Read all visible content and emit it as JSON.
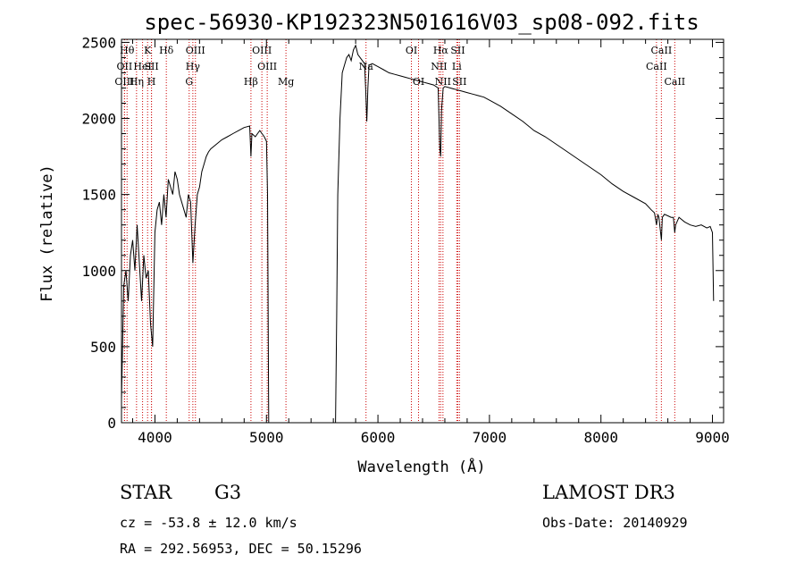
{
  "chart_data": {
    "type": "line",
    "title": "spec-56930-KP192323N501616V03_sp08-092.fits",
    "xlabel": "Wavelength (Å)",
    "ylabel": "Flux (relative)",
    "xlim": [
      3700,
      9100
    ],
    "ylim": [
      0,
      2520
    ],
    "x_ticks": [
      4000,
      5000,
      6000,
      7000,
      8000,
      9000
    ],
    "y_ticks": [
      0,
      500,
      1000,
      1500,
      2000,
      2500
    ],
    "grid": false,
    "series": [
      {
        "name": "spectrum",
        "x": [
          3700,
          3720,
          3740,
          3760,
          3780,
          3800,
          3820,
          3840,
          3860,
          3880,
          3900,
          3920,
          3940,
          3960,
          3980,
          4000,
          4020,
          4040,
          4060,
          4080,
          4100,
          4120,
          4140,
          4160,
          4180,
          4200,
          4220,
          4240,
          4260,
          4280,
          4300,
          4320,
          4340,
          4360,
          4380,
          4400,
          4420,
          4440,
          4460,
          4480,
          4500,
          4550,
          4600,
          4650,
          4700,
          4750,
          4800,
          4850,
          4861,
          4870,
          4900,
          4920,
          4940,
          4960,
          4980,
          5000,
          5010,
          5020,
          5600,
          5620,
          5630,
          5640,
          5660,
          5680,
          5700,
          5720,
          5740,
          5760,
          5780,
          5800,
          5820,
          5840,
          5860,
          5880,
          5890,
          5900,
          5910,
          5920,
          5950,
          6000,
          6050,
          6100,
          6150,
          6200,
          6250,
          6300,
          6350,
          6400,
          6450,
          6500,
          6540,
          6555,
          6563,
          6570,
          6585,
          6600,
          6650,
          6700,
          6750,
          6800,
          6850,
          6900,
          6950,
          7000,
          7100,
          7200,
          7300,
          7400,
          7500,
          7600,
          7700,
          7800,
          7900,
          8000,
          8100,
          8200,
          8300,
          8400,
          8450,
          8480,
          8498,
          8510,
          8520,
          8542,
          8550,
          8570,
          8600,
          8630,
          8650,
          8662,
          8670,
          8700,
          8750,
          8800,
          8850,
          8900,
          8950,
          8980,
          9000,
          9010
        ],
        "y": [
          150,
          900,
          1000,
          800,
          1100,
          1200,
          1000,
          1300,
          1050,
          800,
          1100,
          950,
          1000,
          650,
          500,
          1250,
          1400,
          1450,
          1300,
          1500,
          1350,
          1600,
          1550,
          1500,
          1650,
          1600,
          1500,
          1450,
          1400,
          1350,
          1500,
          1450,
          1050,
          1300,
          1500,
          1550,
          1650,
          1700,
          1750,
          1780,
          1800,
          1830,
          1860,
          1880,
          1900,
          1920,
          1940,
          1950,
          1750,
          1900,
          1880,
          1900,
          1920,
          1900,
          1880,
          1850,
          1500,
          0,
          0,
          0,
          700,
          1500,
          2000,
          2300,
          2350,
          2400,
          2420,
          2380,
          2450,
          2480,
          2420,
          2400,
          2380,
          2360,
          2200,
          1980,
          2200,
          2350,
          2360,
          2340,
          2320,
          2300,
          2290,
          2280,
          2270,
          2260,
          2250,
          2240,
          2230,
          2220,
          2200,
          1800,
          1750,
          2050,
          2200,
          2210,
          2200,
          2190,
          2180,
          2170,
          2160,
          2150,
          2140,
          2120,
          2080,
          2030,
          1980,
          1920,
          1880,
          1830,
          1780,
          1730,
          1680,
          1630,
          1570,
          1520,
          1480,
          1440,
          1400,
          1380,
          1300,
          1370,
          1350,
          1200,
          1350,
          1370,
          1360,
          1350,
          1350,
          1250,
          1300,
          1350,
          1320,
          1300,
          1290,
          1300,
          1280,
          1290,
          1250,
          800
        ]
      }
    ],
    "line_markers": [
      {
        "x": 3750,
        "label": "Hθ",
        "row": 0
      },
      {
        "x": 3727,
        "label": "OII",
        "row": 1
      },
      {
        "x": 3727,
        "label": "OIII",
        "row": 2
      },
      {
        "x": 3835,
        "label": "Hη",
        "row": 2
      },
      {
        "x": 3889,
        "label": "HeI",
        "row": 1
      },
      {
        "x": 3934,
        "label": "K",
        "row": 0
      },
      {
        "x": 3969,
        "label": "H",
        "row": 2
      },
      {
        "x": 3969,
        "label": "SII",
        "row": 1
      },
      {
        "x": 4102,
        "label": "Hδ",
        "row": 0
      },
      {
        "x": 4307,
        "label": "G",
        "row": 2
      },
      {
        "x": 4340,
        "label": "Hγ",
        "row": 1
      },
      {
        "x": 4363,
        "label": "OIII",
        "row": 0
      },
      {
        "x": 4861,
        "label": "Hβ",
        "row": 2
      },
      {
        "x": 4959,
        "label": "OIII",
        "row": 0
      },
      {
        "x": 5007,
        "label": "OIII",
        "row": 1
      },
      {
        "x": 5175,
        "label": "Mg",
        "row": 2
      },
      {
        "x": 5893,
        "label": "Na",
        "row": 1
      },
      {
        "x": 6300,
        "label": "OI",
        "row": 0
      },
      {
        "x": 6364,
        "label": "OI",
        "row": 2
      },
      {
        "x": 6548,
        "label": "NII",
        "row": 1
      },
      {
        "x": 6563,
        "label": "Hα",
        "row": 0
      },
      {
        "x": 6583,
        "label": "NII",
        "row": 2
      },
      {
        "x": 6707,
        "label": "Li",
        "row": 1
      },
      {
        "x": 6716,
        "label": "SII",
        "row": 0
      },
      {
        "x": 6731,
        "label": "SII",
        "row": 2
      },
      {
        "x": 8498,
        "label": "CaII",
        "row": 1
      },
      {
        "x": 8542,
        "label": "CaII",
        "row": 0
      },
      {
        "x": 8662,
        "label": "CaII",
        "row": 2
      }
    ]
  },
  "info": {
    "class_label": "STAR",
    "subclass": "G3",
    "survey": "LAMOST DR3",
    "cz": "cz = -53.8 ± 12.0 km/s",
    "obs_date": "Obs-Date: 20140929",
    "coords": "RA = 292.56953, DEC =  50.15296"
  },
  "colors": {
    "spectrum": "#000000",
    "line_markers": "#cc0000",
    "axes": "#000000"
  }
}
